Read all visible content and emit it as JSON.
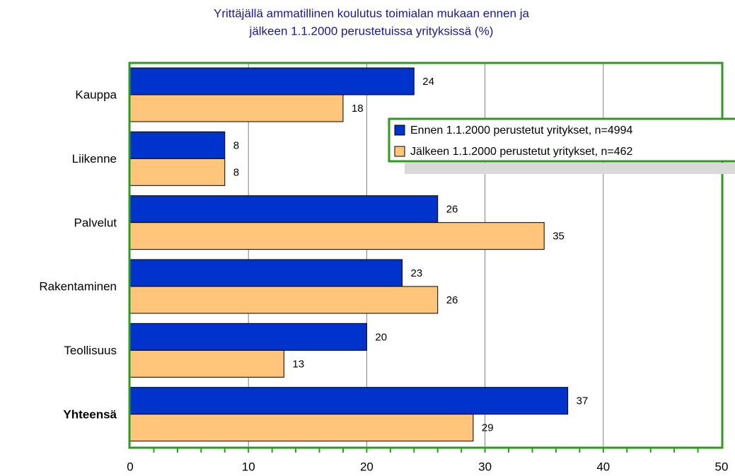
{
  "chart_data": {
    "type": "bar",
    "orientation": "horizontal",
    "title": "Yrittäjällä ammatillinen koulutus toimialan mukaan ennen ja",
    "subtitle": "jälkeen 1.1.2000 perustetuissa yrityksissä (%)",
    "categories": [
      "Kauppa",
      "Liikenne",
      "Palvelut",
      "Rakentaminen",
      "Teollisuus",
      "Yhteensä"
    ],
    "series": [
      {
        "name": "Ennen 1.1.2000 perustetut yritykset, n=4994",
        "color": "#0033cc",
        "values": [
          24,
          8,
          26,
          23,
          20,
          37
        ]
      },
      {
        "name": "Jälkeen 1.1.2000 perustetut yritykset, n=462",
        "color": "#ffc57a",
        "values": [
          18,
          8,
          35,
          26,
          13,
          29
        ]
      }
    ],
    "xlim": [
      0,
      50
    ],
    "xticks": [
      0,
      10,
      20,
      30,
      40,
      50
    ],
    "grid": true,
    "legend": "upper right"
  }
}
